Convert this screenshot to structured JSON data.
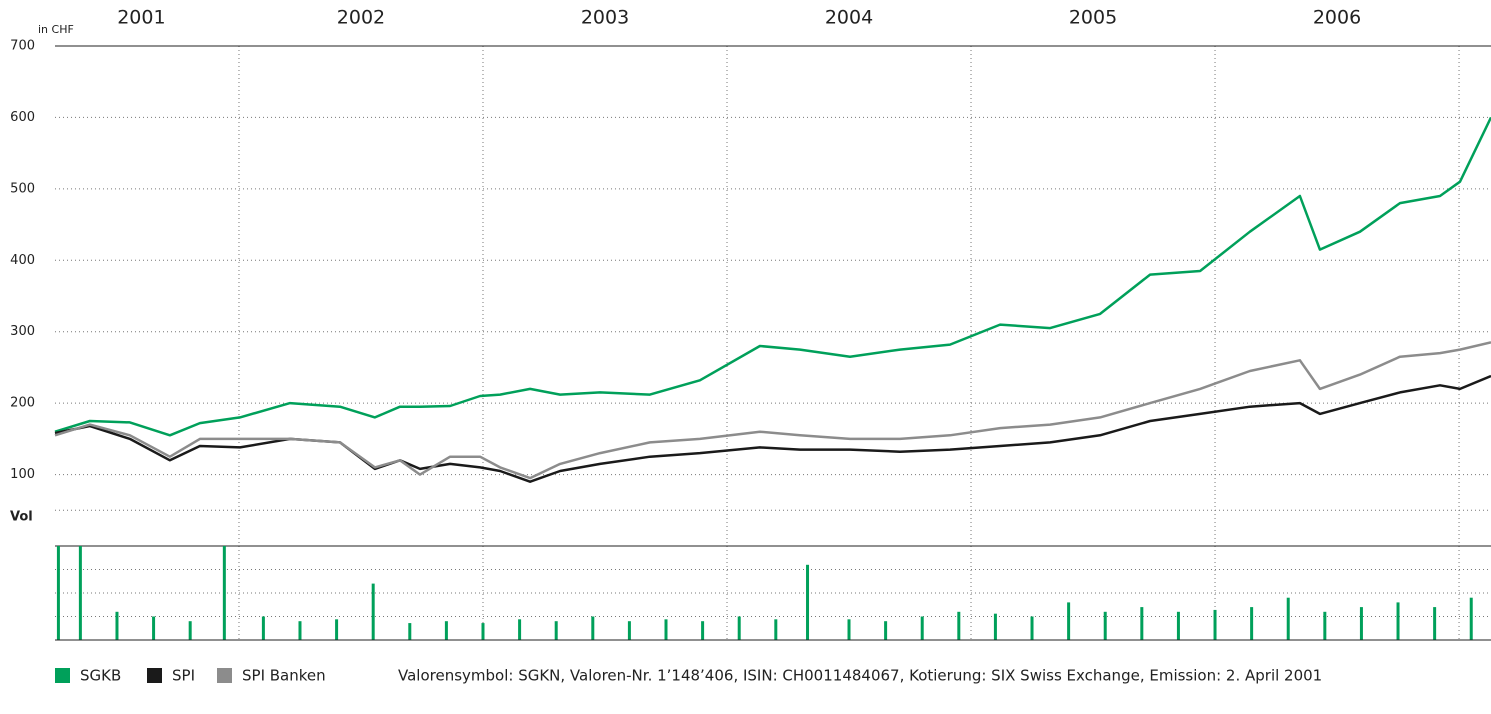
{
  "chart_data": [
    {
      "type": "line",
      "ylabel": "in CHF",
      "xlim": [
        2001.246,
        2007.131
      ],
      "xticks": [
        {
          "value": 2001.6,
          "label": "2001"
        },
        {
          "value": 2002.5,
          "label": "2002"
        },
        {
          "value": 2003.5,
          "label": "2003"
        },
        {
          "value": 2004.5,
          "label": "2004"
        },
        {
          "value": 2005.5,
          "label": "2005"
        },
        {
          "value": 2006.5,
          "label": "2006"
        }
      ],
      "xgrid": [
        2002,
        2003,
        2004,
        2005,
        2006,
        2007
      ],
      "ylim": [
        0,
        700
      ],
      "yticks": [
        100,
        200,
        300,
        400,
        500,
        600,
        700
      ],
      "ygrid": [
        50
      ],
      "grid": true,
      "x": [
        2001.246,
        2001.389,
        2001.553,
        2001.717,
        2001.84,
        2002.004,
        2002.209,
        2002.414,
        2002.557,
        2002.66,
        2002.742,
        2002.865,
        2002.988,
        2003.07,
        2003.193,
        2003.316,
        2003.48,
        2003.684,
        2003.889,
        2004.135,
        2004.299,
        2004.504,
        2004.709,
        2004.914,
        2005.119,
        2005.324,
        2005.529,
        2005.734,
        2005.939,
        2006.143,
        2006.348,
        2006.43,
        2006.594,
        2006.758,
        2006.922,
        2007.004,
        2007.131
      ],
      "series": [
        {
          "name": "SGKB",
          "color": "#00a05a",
          "values": [
            160,
            175,
            173,
            155,
            172,
            180,
            200,
            195,
            180,
            195,
            195,
            196,
            210,
            212,
            220,
            212,
            215,
            212,
            232,
            280,
            275,
            265,
            275,
            282,
            310,
            305,
            325,
            380,
            385,
            440,
            490,
            415,
            440,
            480,
            490,
            510,
            600
          ]
        },
        {
          "name": "SPI",
          "color": "#1a1a1a",
          "values": [
            158,
            168,
            150,
            120,
            140,
            138,
            150,
            145,
            108,
            120,
            108,
            115,
            110,
            105,
            90,
            105,
            115,
            125,
            130,
            138,
            135,
            135,
            132,
            135,
            140,
            145,
            155,
            175,
            185,
            195,
            200,
            185,
            200,
            215,
            225,
            220,
            238
          ]
        },
        {
          "name": "SPI Banken",
          "color": "#8c8c8c",
          "values": [
            155,
            170,
            155,
            125,
            150,
            150,
            150,
            145,
            110,
            120,
            100,
            125,
            125,
            110,
            95,
            115,
            130,
            145,
            150,
            160,
            155,
            150,
            150,
            155,
            165,
            170,
            180,
            200,
            220,
            245,
            260,
            220,
            240,
            265,
            270,
            275,
            285
          ]
        }
      ],
      "note": "Valorensymbol: SGKN, Valoren-Nr. 1’148’406, ISIN: CH0011484067, Kotierung: SIX Swiss Exchange, Emission: 2. April 2001"
    },
    {
      "type": "volume",
      "ylabel": "Vol",
      "color": "#00a05a",
      "xlim": [
        2001.246,
        2007.131
      ],
      "ylim": [
        0,
        100
      ],
      "ygrid": [
        25,
        50,
        75
      ],
      "x": [
        2001.26,
        2001.35,
        2001.5,
        2001.65,
        2001.8,
        2001.94,
        2002.1,
        2002.25,
        2002.4,
        2002.55,
        2002.7,
        2002.85,
        2003.0,
        2003.15,
        2003.3,
        2003.45,
        2003.6,
        2003.75,
        2003.9,
        2004.05,
        2004.2,
        2004.33,
        2004.5,
        2004.65,
        2004.8,
        2004.95,
        2005.1,
        2005.25,
        2005.4,
        2005.55,
        2005.7,
        2005.85,
        2006.0,
        2006.15,
        2006.3,
        2006.45,
        2006.6,
        2006.75,
        2006.9,
        2007.05
      ],
      "values": [
        100,
        100,
        30,
        25,
        20,
        100,
        25,
        20,
        22,
        60,
        18,
        20,
        18,
        22,
        20,
        25,
        20,
        22,
        20,
        25,
        22,
        80,
        22,
        20,
        25,
        30,
        28,
        25,
        40,
        30,
        35,
        30,
        32,
        35,
        45,
        30,
        35,
        40,
        35,
        45
      ]
    }
  ]
}
